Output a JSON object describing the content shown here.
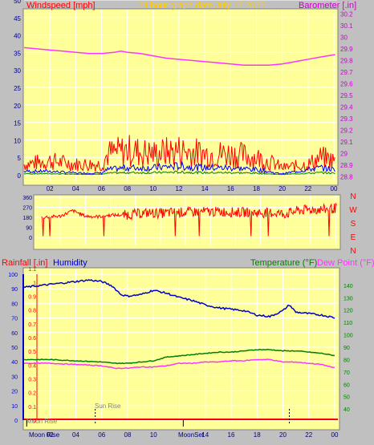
{
  "header": {
    "left_title": "Windspeed [mph]",
    "center_title": "24 hour graph date   July 17 2025",
    "right_title": "Barometer [.in]"
  },
  "colors": {
    "background": "#c0c0c0",
    "plot_bg": "#ffff99",
    "grid": "#ffffff",
    "wind_gust": "#ff0000",
    "wind_avg": "#0000ff",
    "wind_low": "#008000",
    "barometer": "#ff33ff",
    "direction": "#ff0000",
    "humidity": "#0000cc",
    "temperature": "#008000",
    "dewpoint": "#ff33ff",
    "rain": "#ff0000",
    "title_left": "#ff0000",
    "title_center": "#ffcc00",
    "title_right": "#cc00cc"
  },
  "chart_data": [
    {
      "type": "line",
      "name": "wind-barometer",
      "x_ticks": [
        "02",
        "04",
        "06",
        "08",
        "10",
        "12",
        "14",
        "16",
        "18",
        "20",
        "22",
        "00"
      ],
      "y_left_ticks": [
        "0",
        "5",
        "10",
        "15",
        "20",
        "25",
        "30",
        "35",
        "40",
        "45",
        "50"
      ],
      "y_left_range": [
        0,
        50
      ],
      "y_right_ticks": [
        "28.8",
        "28.9",
        "29",
        "29.1",
        "29.2",
        "29.3",
        "29.4",
        "29.5",
        "29.6",
        "29.7",
        "29.8",
        "29.9",
        "30",
        "30.1",
        "30.2"
      ],
      "y_right_range": [
        28.75,
        30.25
      ],
      "x_range": [
        0,
        24.25
      ],
      "barometer": {
        "x": [
          0.0,
          1,
          2,
          3,
          4,
          5,
          6,
          7,
          7.5,
          8,
          9,
          10,
          11,
          12,
          13,
          14,
          15,
          16,
          17,
          18,
          19,
          20,
          21,
          22,
          23,
          24.1
        ],
        "y": [
          29.91,
          29.9,
          29.89,
          29.88,
          29.87,
          29.86,
          29.86,
          29.87,
          29.88,
          29.87,
          29.86,
          29.84,
          29.82,
          29.81,
          29.8,
          29.79,
          29.78,
          29.77,
          29.76,
          29.76,
          29.76,
          29.77,
          29.79,
          29.81,
          29.83,
          29.85
        ]
      },
      "wind_gust_profile": {
        "x": [
          0,
          2,
          4,
          6,
          6.5,
          8,
          10,
          12,
          14,
          16,
          18,
          19.5,
          20,
          22,
          23,
          24.1
        ],
        "y": [
          3,
          4,
          3,
          3,
          6,
          7,
          6,
          7,
          6,
          6,
          5,
          3,
          2,
          3,
          5,
          4
        ]
      },
      "wind_avg_profile": {
        "x": [
          0,
          2,
          4,
          6,
          6.5,
          8,
          10,
          12,
          14,
          16,
          18,
          19.5,
          20,
          22,
          23,
          24.1
        ],
        "y": [
          1,
          1,
          0.5,
          0.5,
          1.5,
          2,
          2,
          2.5,
          2,
          2,
          1.5,
          0.5,
          0.3,
          1.5,
          2,
          1.5
        ]
      }
    },
    {
      "type": "scatter",
      "name": "wind-direction",
      "y_left_ticks": [
        "360",
        "270",
        "180",
        "90",
        "0"
      ],
      "y_right_ticks": [
        "N",
        "W",
        "S",
        "E",
        "N"
      ],
      "y_range": [
        0,
        360
      ],
      "profile": {
        "x": [
          0.5,
          2,
          3,
          4,
          5,
          6,
          7,
          8,
          9,
          10,
          11,
          12,
          13,
          14,
          15,
          16,
          17,
          18,
          19,
          20,
          21,
          22,
          23,
          24
        ],
        "y": [
          180,
          190,
          240,
          190,
          185,
          200,
          200,
          210,
          220,
          215,
          225,
          225,
          230,
          230,
          230,
          225,
          225,
          220,
          220,
          210,
          240,
          250,
          250,
          260
        ]
      }
    },
    {
      "type": "line",
      "name": "humidity-temperature",
      "header_left_1": "Rainfall [.in]",
      "header_left_2": "Humidity",
      "header_right_1": "Temperature (°F)",
      "header_right_2": "Dew Point (°F)",
      "y_humidity_ticks": [
        "0",
        "10",
        "20",
        "30",
        "40",
        "50",
        "60",
        "70",
        "80",
        "90",
        "100"
      ],
      "y_rain_ticks": [
        "0",
        "0.1",
        "0.2",
        "0.3",
        "0.4",
        "0.5",
        "0.6",
        "0.7",
        "0.8",
        "0.9",
        "1",
        "1.1"
      ],
      "y_temp_ticks": [
        "40",
        "50",
        "60",
        "70",
        "80",
        "90",
        "100",
        "110",
        "120",
        "130",
        "140"
      ],
      "humidity_range": [
        0,
        100
      ],
      "temp_range": [
        31,
        149
      ],
      "rain_total": 0,
      "humidity": {
        "x": [
          0,
          1,
          2,
          3,
          4,
          5,
          6,
          6.8,
          7.5,
          8,
          9,
          10,
          11,
          12,
          13,
          14,
          15,
          16,
          17,
          18,
          19,
          20,
          20.5,
          21,
          22,
          23,
          24.1
        ],
        "y": [
          91,
          92,
          93,
          94,
          95,
          96,
          95,
          92,
          86,
          85,
          86,
          89,
          87,
          84,
          82,
          79,
          77,
          76,
          75,
          72,
          71,
          75,
          79,
          74,
          73,
          72,
          70
        ]
      },
      "temperature": {
        "x": [
          0,
          2,
          4,
          6,
          7,
          8,
          9,
          10,
          11,
          12,
          13,
          14,
          15,
          16,
          17,
          18,
          19,
          20,
          21,
          22,
          23,
          24.1
        ],
        "y": [
          80,
          80,
          79,
          78,
          77,
          77,
          78,
          79,
          82,
          83,
          84,
          85,
          86,
          86,
          87,
          88,
          88,
          87,
          87,
          86,
          85,
          83
        ]
      },
      "dewpoint": {
        "x": [
          0,
          2,
          4,
          6,
          7,
          8,
          9,
          10,
          11,
          12,
          13,
          14,
          15,
          16,
          17,
          18,
          19,
          20,
          21,
          22,
          23,
          24.1
        ],
        "y": [
          77,
          77,
          76,
          75,
          73,
          73,
          74,
          74,
          75,
          77,
          77,
          78,
          78,
          79,
          79,
          80,
          80,
          78,
          78,
          77,
          76,
          73
        ]
      }
    }
  ],
  "bottom_axis": {
    "x_ticks": [
      "02",
      "04",
      "06",
      "08",
      "10",
      "12",
      "14",
      "16",
      "18",
      "20",
      "22",
      "00"
    ],
    "moon_rise_label": "Moon Rise",
    "moon_rise_axis_label": "Moon Rise",
    "sun_rise_label": "Sun Rise",
    "moon_set_label": "MoonSet",
    "moon_rise_time": 0.2,
    "sun_rise_time": 5.5,
    "moon_set_time": 12.3,
    "sun_set_time": 20.5
  }
}
